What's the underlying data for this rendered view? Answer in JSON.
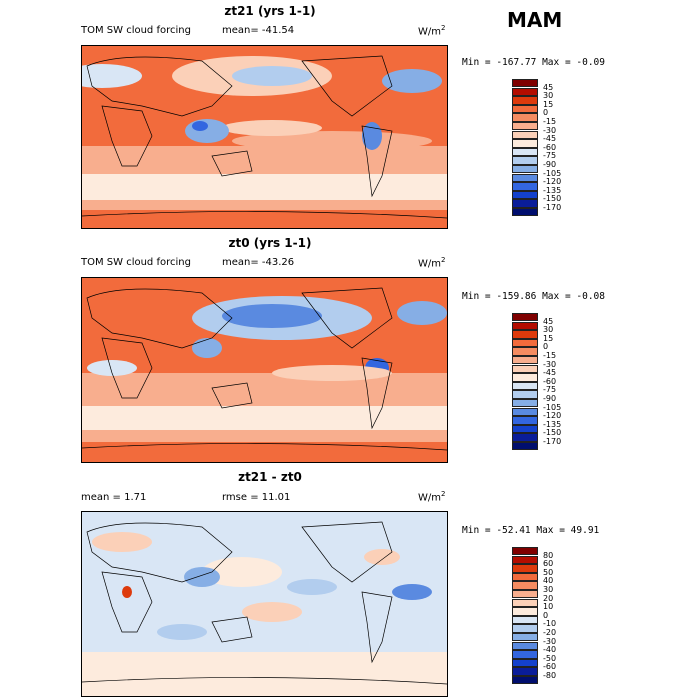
{
  "season": "MAM",
  "units_base": "W/m",
  "units_exp": "2",
  "panels": [
    {
      "title": "zt21 (yrs 1-1)",
      "left_label": "TOM SW cloud forcing",
      "stat_label": "mean= -41.54",
      "minmax": "Min = -167.77 Max =  -0.09",
      "scheme": "abs",
      "labels": [
        "45",
        "30",
        "15",
        "0",
        "-15",
        "-30",
        "-45",
        "-60",
        "-75",
        "-90",
        "-105",
        "-120",
        "-135",
        "-150",
        "-170"
      ]
    },
    {
      "title": "zt0 (yrs 1-1)",
      "left_label": "TOM SW cloud forcing",
      "stat_label": "mean= -43.26",
      "minmax": "Min = -159.86 Max =  -0.08",
      "scheme": "abs",
      "labels": [
        "45",
        "30",
        "15",
        "0",
        "-15",
        "-30",
        "-45",
        "-60",
        "-75",
        "-90",
        "-105",
        "-120",
        "-135",
        "-150",
        "-170"
      ]
    },
    {
      "title": "zt21 - zt0",
      "left_label": "mean =    1.71",
      "stat_label": "rmse =   11.01",
      "minmax": "Min = -52.41 Max =  49.91",
      "scheme": "diff",
      "labels": [
        "80",
        "60",
        "50",
        "40",
        "30",
        "20",
        "10",
        "0",
        "-10",
        "-20",
        "-30",
        "-40",
        "-50",
        "-60",
        "-80"
      ]
    }
  ],
  "colors": {
    "abs": [
      "#7f0000",
      "#b30d00",
      "#dd3a0c",
      "#f26b3c",
      "#f58c61",
      "#f8ae8e",
      "#fbd0b8",
      "#fdebdd",
      "#d9e6f5",
      "#b2cdee",
      "#86aee5",
      "#5a8ae0",
      "#3366e0",
      "#1441cc",
      "#0a1d99",
      "#000e6e"
    ],
    "diff": [
      "#7f0000",
      "#b30d00",
      "#dd3a0c",
      "#f26b3c",
      "#f58c61",
      "#f8ae8e",
      "#fbd0b8",
      "#fdebdd",
      "#d9e6f5",
      "#b2cdee",
      "#86aee5",
      "#5a8ae0",
      "#3366e0",
      "#1441cc",
      "#0a1d99",
      "#000e6e"
    ]
  }
}
